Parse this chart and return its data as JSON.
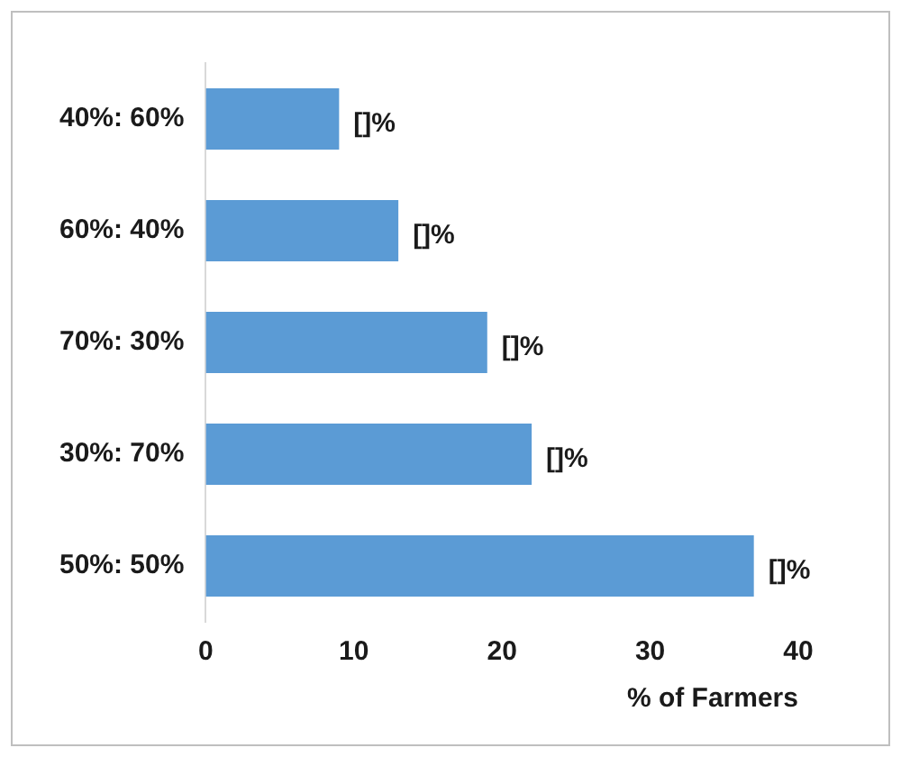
{
  "chart_data": {
    "type": "bar",
    "orientation": "horizontal",
    "categories": [
      "40%: 60%",
      "60%: 40%",
      "70%: 30%",
      "30%: 70%",
      "50%: 50%"
    ],
    "values": [
      9,
      13,
      19,
      22,
      37
    ],
    "value_labels": [
      "[]%",
      "[]%",
      "[]%",
      "[]%",
      "[]%"
    ],
    "color": "#5b9bd5",
    "xlim": [
      0,
      40
    ],
    "xticks": [
      0,
      10,
      20,
      30,
      40
    ],
    "xlabel": "% of Farmers",
    "grid": false,
    "legend": false
  }
}
